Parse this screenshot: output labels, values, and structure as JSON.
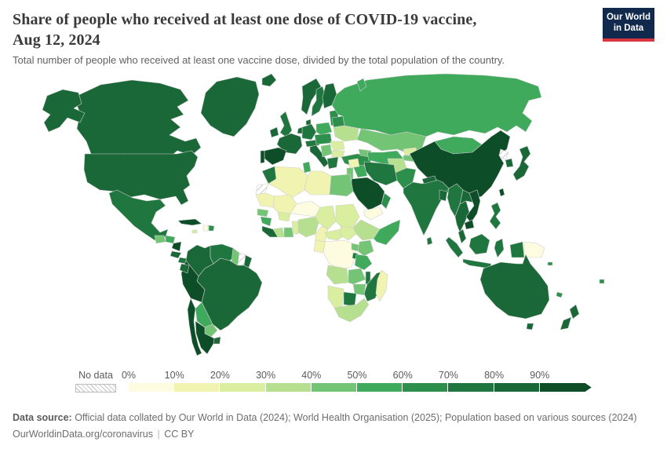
{
  "header": {
    "title_line1": "Share of people who received at least one dose of COVID-19 vaccine,",
    "title_line2": "Aug 12, 2024",
    "subtitle": "Total number of people who received at least one vaccine dose, divided by the total population of the country."
  },
  "logo": {
    "line1": "Our World",
    "line2": "in Data",
    "bg_color": "#12294e",
    "accent_color": "#d8353f"
  },
  "legend": {
    "no_data_label": "No data",
    "ticks": [
      "0%",
      "10%",
      "20%",
      "30%",
      "40%",
      "50%",
      "60%",
      "70%",
      "80%",
      "90%"
    ]
  },
  "footer": {
    "source_label": "Data source:",
    "source_text": " Official data collated by Our World in Data (2024); World Health Organisation (2025); Population based on various sources (2024)",
    "link": "OurWorldinData.org/coronavirus",
    "separator": "|",
    "license": "CC BY"
  },
  "chart_data": {
    "type": "choropleth",
    "title": "Share of people who received at least one dose of COVID-19 vaccine, Aug 12, 2024",
    "unit": "%",
    "legend_position": "bottom",
    "bands": [
      "0-10%",
      "10-20%",
      "20-30%",
      "30-40%",
      "40-50%",
      "50-60%",
      "60-70%",
      "70-80%",
      "80-90%",
      "90-100%"
    ],
    "band_colors": [
      "#fdfce1",
      "#f0f4b0",
      "#d9ee9f",
      "#b6df90",
      "#74c476",
      "#3fa95c",
      "#2d8f4c",
      "#20763f",
      "#1a6837",
      "#0d4d28"
    ],
    "no_data_pattern": "gray-diagonal-hatch",
    "regions": {
      "greenland": "80-90%",
      "iceland": "80-90%",
      "canada": "80-90%",
      "alaska": "80-90%",
      "usa": "80-90%",
      "mexico": "70-80%",
      "guatemala": "40-50%",
      "honduras": "50-60%",
      "nicaragua": "90-100%",
      "costa-rica": "80-90%",
      "panama": "70-80%",
      "cuba": "90-100%",
      "haiti": "0-10%",
      "dominican-republic": "60-70%",
      "jamaica": "20-30%",
      "colombia": "80-90%",
      "venezuela": "70-80%",
      "guyana": "40-50%",
      "suriname": "no-data",
      "french-guiana": "80-90%",
      "ecuador": "80-90%",
      "brazil": "80-90%",
      "peru": "90-100%",
      "bolivia": "50-60%",
      "paraguay": "40-50%",
      "uruguay": "80-90%",
      "argentina": "90-100%",
      "chile": "90-100%",
      "ireland": "80-90%",
      "uk": "70-80%",
      "norway": "80-90%",
      "sweden": "70-80%",
      "finland": "80-90%",
      "denmark": "80-90%",
      "baltics": "60-70%",
      "france": "80-90%",
      "spain": "90-100%",
      "portugal": "90-100%",
      "germany": "70-80%",
      "benelux": "80-90%",
      "alpine": "70-80%",
      "italy": "80-90%",
      "poland": "50-60%",
      "czech-hungary": "60-70%",
      "balkans": "40-50%",
      "romania": "20-30%",
      "bulgaria": "20-30%",
      "greece": "70-80%",
      "belarus": "60-70%",
      "ukraine": "30-40%",
      "turkey": "60-70%",
      "caucasus": "40-50%",
      "russia": "50-60%",
      "novaya-zemlya": "50-60%",
      "kazakhstan": "40-50%",
      "uzbek-turkmen": "50-60%",
      "kyrgyzstan": "20-30%",
      "tajikistan": "40-50%",
      "mongolia": "50-60%",
      "china": "90-100%",
      "north-korea": "no-data",
      "south-korea": "80-90%",
      "japan": "80-90%",
      "taiwan": "90-100%",
      "afghanistan": "30-40%",
      "pakistan": "60-70%",
      "india": "70-80%",
      "nepal": "80-90%",
      "bangladesh": "80-90%",
      "sri-lanka": "70-80%",
      "iran": "70-80%",
      "iraq": "50-60%",
      "syria": "10-20%",
      "levant": "40-50%",
      "saudi-arabia": "90-100%",
      "yemen": "0-10%",
      "oman": "60-70%",
      "myanmar": "70-80%",
      "laos": "80-90%",
      "thailand": "80-90%",
      "vietnam": "90-100%",
      "cambodia": "90-100%",
      "malaysia": "80-90%",
      "sumatra": "70-80%",
      "java": "70-80%",
      "borneo": "70-80%",
      "sulawesi": "70-80%",
      "west-papua": "70-80%",
      "papua-new-guinea": "0-10%",
      "philippines": "70-80%",
      "australia": "80-90%",
      "tasmania": "80-90%",
      "nz-north": "80-90%",
      "nz-south": "80-90%",
      "fiji": "60-70%",
      "solomon": "60-70%",
      "new-caledonia": "60-70%",
      "morocco": "70-80%",
      "western-sahara": "no-data",
      "algeria": "10-20%",
      "tunisia": "50-60%",
      "libya": "10-20%",
      "egypt": "40-50%",
      "mauritania": "10-20%",
      "mali": "10-20%",
      "niger": "0-10%",
      "chad": "20-30%",
      "sudan": "20-30%",
      "ethiopia": "30-40%",
      "somalia": "50-60%",
      "senegal": "40-50%",
      "guinea": "50-60%",
      "sierra-leone-liberia": "80-90%",
      "ivory-coast": "30-40%",
      "ghana": "40-50%",
      "burkina": "20-30%",
      "togo-benin": "20-30%",
      "nigeria": "30-40%",
      "cameroon": "10-20%",
      "car": "20-30%",
      "south-sudan": "20-30%",
      "drc": "0-10%",
      "gabon-congo": "10-20%",
      "uganda": "40-50%",
      "kenya": "40-50%",
      "rwanda-burundi": "70-80%",
      "tanzania": "50-60%",
      "angola": "30-40%",
      "zambia": "40-50%",
      "malawi": "70-80%",
      "mozambique": "70-80%",
      "zimbabwe": "40-50%",
      "botswana": "70-80%",
      "namibia": "20-30%",
      "south-africa": "30-40%",
      "madagascar": "10-20%"
    }
  }
}
